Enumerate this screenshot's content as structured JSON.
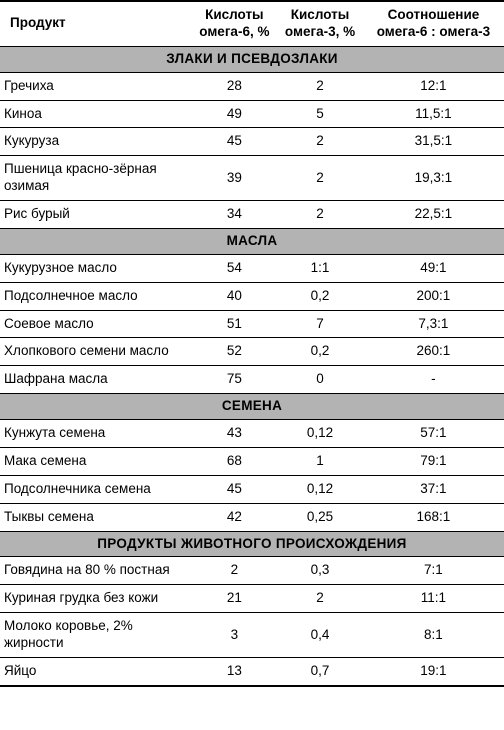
{
  "columns": {
    "product": "Продукт",
    "omega6": "Кислоты омега-6, %",
    "omega3": "Кислоты омега-3, %",
    "ratio": "Соотношение омега-6 : омега-3"
  },
  "sections": [
    {
      "title": "ЗЛАКИ И ПСЕВДОЗЛАКИ",
      "rows": [
        {
          "product": "Гречиха",
          "omega6": "28",
          "omega3": "2",
          "ratio": "12:1"
        },
        {
          "product": "Киноа",
          "omega6": "49",
          "omega3": "5",
          "ratio": "11,5:1"
        },
        {
          "product": "Кукуруза",
          "omega6": "45",
          "omega3": "2",
          "ratio": "31,5:1"
        },
        {
          "product": "Пшеница красно-зёрная озимая",
          "omega6": "39",
          "omega3": "2",
          "ratio": "19,3:1"
        },
        {
          "product": "Рис бурый",
          "omega6": "34",
          "omega3": "2",
          "ratio": "22,5:1"
        }
      ]
    },
    {
      "title": "МАСЛА",
      "rows": [
        {
          "product": "Кукурузное масло",
          "omega6": "54",
          "omega3": "1:1",
          "ratio": "49:1"
        },
        {
          "product": "Подсолнечное масло",
          "omega6": "40",
          "omega3": "0,2",
          "ratio": "200:1"
        },
        {
          "product": "Соевое масло",
          "omega6": "51",
          "omega3": "7",
          "ratio": "7,3:1"
        },
        {
          "product": "Хлопкового семени масло",
          "omega6": "52",
          "omega3": "0,2",
          "ratio": "260:1"
        },
        {
          "product": "Шафрана масла",
          "omega6": "75",
          "omega3": "0",
          "ratio": "-"
        }
      ]
    },
    {
      "title": "СЕМЕНА",
      "rows": [
        {
          "product": "Кунжута семена",
          "omega6": "43",
          "omega3": "0,12",
          "ratio": "57:1"
        },
        {
          "product": "Мака семена",
          "omega6": "68",
          "omega3": "1",
          "ratio": "79:1"
        },
        {
          "product": "Подсолнечника семена",
          "omega6": "45",
          "omega3": "0,12",
          "ratio": "37:1"
        },
        {
          "product": "Тыквы семена",
          "omega6": "42",
          "omega3": "0,25",
          "ratio": "168:1"
        }
      ]
    },
    {
      "title": "ПРОДУКТЫ ЖИВОТНОГО ПРОИСХОЖДЕНИЯ",
      "rows": [
        {
          "product": "Говядина на 80 % постная",
          "omega6": "2",
          "omega3": "0,3",
          "ratio": "7:1"
        },
        {
          "product": "Куриная грудка без кожи",
          "omega6": "21",
          "omega3": "2",
          "ratio": "11:1"
        },
        {
          "product": "Молоко коровье, 2% жирности",
          "omega6": "3",
          "omega3": "0,4",
          "ratio": "8:1"
        },
        {
          "product": "Яйцо",
          "omega6": "13",
          "omega3": "0,7",
          "ratio": "19:1"
        }
      ]
    }
  ],
  "style": {
    "section_bg": "#b3b3b3",
    "border_color": "#000000",
    "font_family": "Arial",
    "header_fontsize_pt": 10,
    "cell_fontsize_pt": 10,
    "col_widths_pct": [
      38,
      17,
      17,
      28
    ],
    "background": "#ffffff"
  }
}
